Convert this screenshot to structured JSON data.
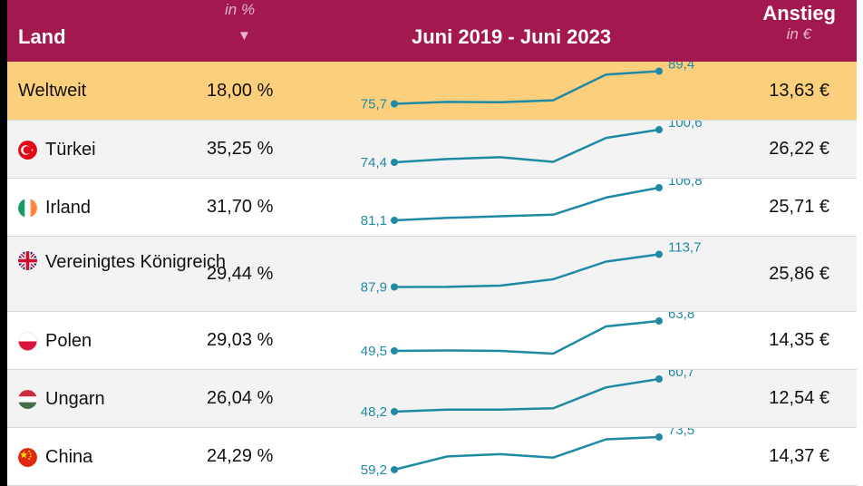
{
  "header": {
    "land": "Land",
    "in_pct": "in %",
    "sort_arrow": "▼",
    "period": "Juni 2019 - Juni 2023",
    "anstieg": "Anstieg",
    "in_eur": "in €"
  },
  "colors": {
    "header_bg": "#a3184f",
    "highlight_row": "#fccf7d",
    "line": "#1f8aa5"
  },
  "chart_data": {
    "type": "table",
    "columns": [
      "Land",
      "in %",
      "Juni 2019 - Juni 2023",
      "Anstieg in €"
    ],
    "rows": [
      {
        "country": "Weltweit",
        "flag": "",
        "pct": "18,00 %",
        "start": 75.7,
        "end": 89.4,
        "start_label": "75,7",
        "end_label": "89,4",
        "series": [
          75.7,
          76.5,
          76.4,
          77.2,
          88.0,
          89.4
        ],
        "eur": "13,63 €"
      },
      {
        "country": "Türkei",
        "flag": "turkey-flag-icon",
        "pct": "35,25 %",
        "start": 74.4,
        "end": 100.6,
        "start_label": "74,4",
        "end_label": "100,6",
        "series": [
          74.4,
          77.0,
          78.5,
          74.8,
          94.0,
          100.6
        ],
        "eur": "26,22 €"
      },
      {
        "country": "Irland",
        "flag": "ireland-flag-icon",
        "pct": "31,70 %",
        "start": 81.1,
        "end": 106.8,
        "start_label": "81,1",
        "end_label": "106,8",
        "series": [
          81.1,
          83.0,
          84.3,
          85.5,
          99.0,
          106.8
        ],
        "eur": "25,71 €"
      },
      {
        "country": "Vereinigtes Königreich",
        "flag": "uk-flag-icon",
        "pct": "29,44 %",
        "start": 87.9,
        "end": 113.7,
        "start_label": "87,9",
        "end_label": "113,7",
        "series": [
          87.9,
          88.0,
          89.0,
          94.0,
          108.0,
          113.7
        ],
        "eur": "25,86 €"
      },
      {
        "country": "Polen",
        "flag": "poland-flag-icon",
        "pct": "29,03 %",
        "start": 49.5,
        "end": 63.8,
        "start_label": "49,5",
        "end_label": "63,8",
        "series": [
          49.5,
          49.7,
          49.5,
          48.2,
          61.2,
          63.8
        ],
        "eur": "14,35 €"
      },
      {
        "country": "Ungarn",
        "flag": "hungary-flag-icon",
        "pct": "26,04 %",
        "start": 48.2,
        "end": 60.7,
        "start_label": "48,2",
        "end_label": "60,7",
        "series": [
          48.2,
          49.0,
          49.0,
          49.5,
          57.5,
          60.7
        ],
        "eur": "12,54 €"
      },
      {
        "country": "China",
        "flag": "china-flag-icon",
        "pct": "24,29 %",
        "start": 59.2,
        "end": 73.5,
        "start_label": "59,2",
        "end_label": "73,5",
        "series": [
          59.2,
          65.0,
          66.0,
          64.5,
          72.5,
          73.5
        ],
        "eur": "14,37 €"
      }
    ]
  }
}
